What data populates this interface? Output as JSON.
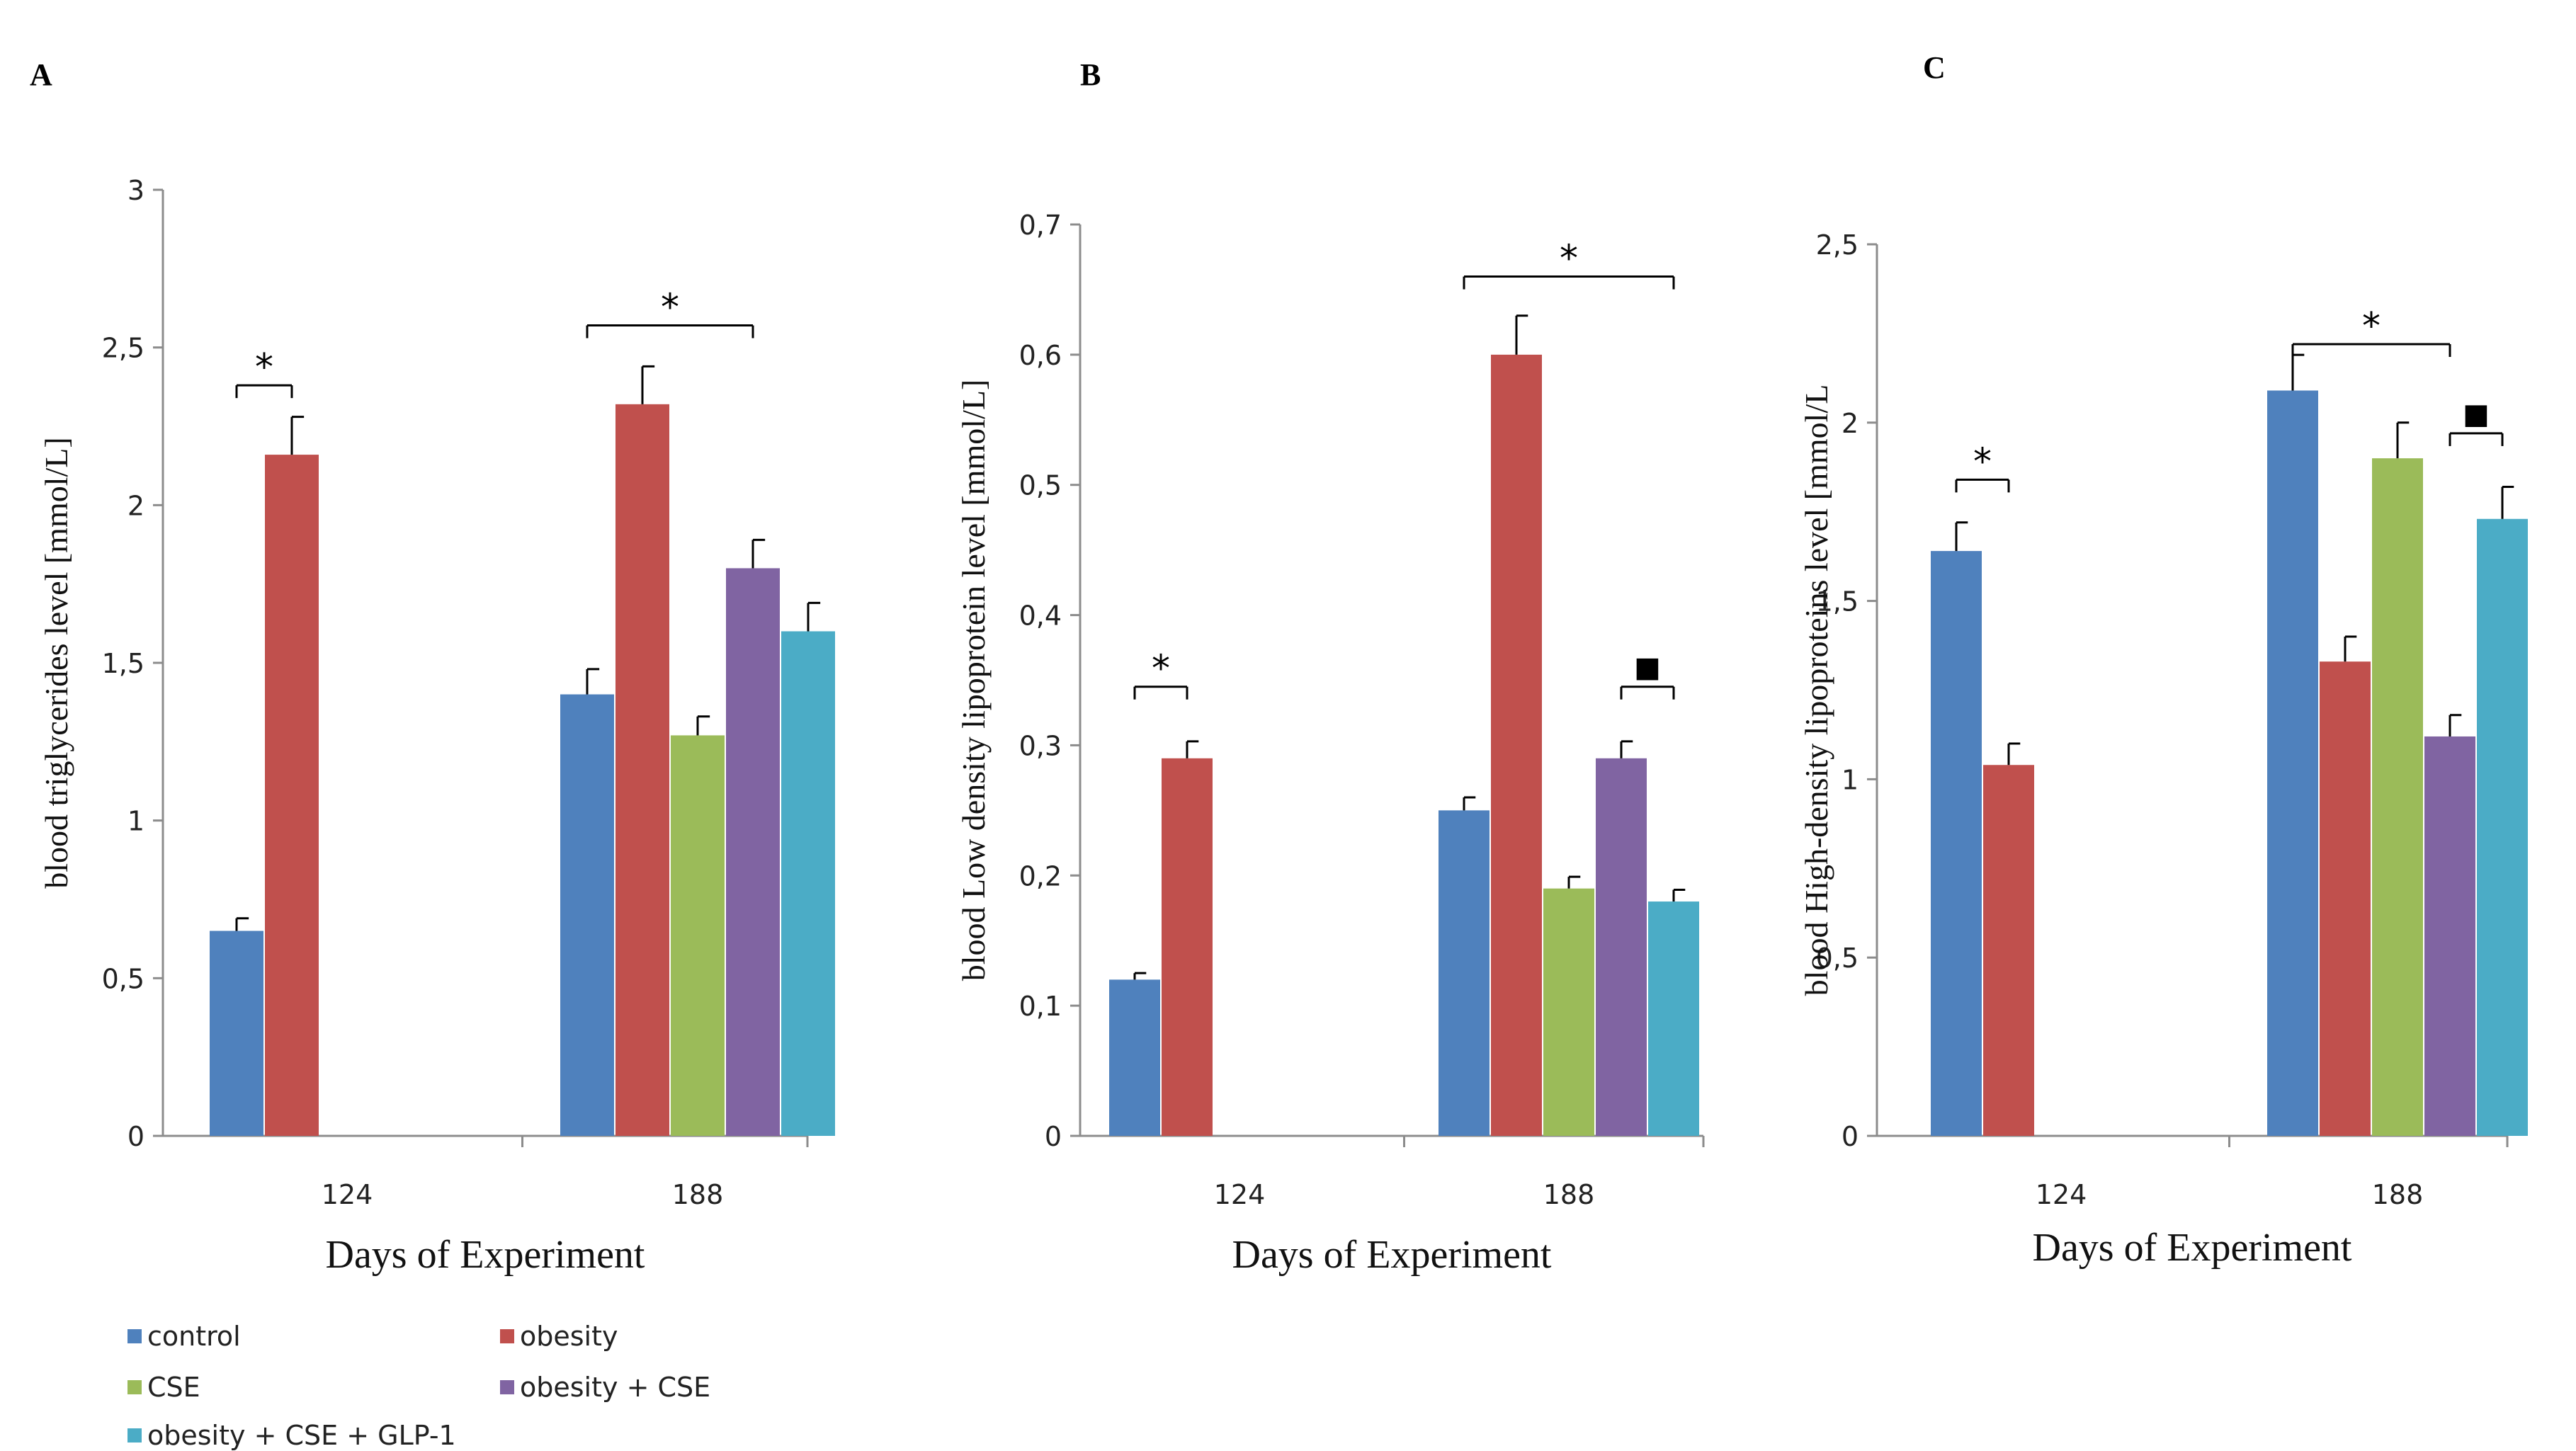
{
  "colors": {
    "control": "#4f81bd",
    "obesity": "#c0504d",
    "cse": "#9bbb59",
    "obesity_cse": "#8064a2",
    "obesity_cse_glp1": "#4bacc6"
  },
  "legend": {
    "items": [
      {
        "label": "control",
        "color": "#4f81bd"
      },
      {
        "label": "obesity",
        "color": "#c0504d"
      },
      {
        "label": "CSE",
        "color": "#9bbb59"
      },
      {
        "label": "obesity + CSE",
        "color": "#8064a2"
      },
      {
        "label": "obesity + CSE + GLP-1",
        "color": "#4bacc6"
      }
    ]
  },
  "chart_data": [
    {
      "panel": "A",
      "type": "bar",
      "title": "",
      "xlabel": "Days of Experiment",
      "ylabel": "blood triglycerides  level  [mmol/L]",
      "categories": [
        "124",
        "188"
      ],
      "ylim": [
        0,
        3
      ],
      "yticks": [
        "0",
        "0,5",
        "1",
        "1,5",
        "2",
        "2,5",
        "3"
      ],
      "ytick_values": [
        0,
        0.5,
        1,
        1.5,
        2,
        2.5,
        3
      ],
      "series": [
        {
          "name": "control",
          "values": [
            0.65,
            1.4
          ],
          "errors": [
            0.04,
            0.08
          ]
        },
        {
          "name": "obesity",
          "values": [
            2.16,
            2.32
          ],
          "errors": [
            0.12,
            0.12
          ]
        },
        {
          "name": "CSE",
          "values": [
            null,
            1.27
          ],
          "errors": [
            null,
            0.06
          ]
        },
        {
          "name": "obesity + CSE",
          "values": [
            null,
            1.8
          ],
          "errors": [
            null,
            0.09
          ]
        },
        {
          "name": "obesity + CSE + GLP-1",
          "values": [
            null,
            1.6
          ],
          "errors": [
            null,
            0.09
          ]
        }
      ],
      "annotations": [
        {
          "text": "*",
          "category": 0,
          "from_series": 0,
          "to_series": 1,
          "y": 2.38
        },
        {
          "text": "*",
          "category": 1,
          "from_series": 0,
          "to_series": 3,
          "y": 2.57
        }
      ]
    },
    {
      "panel": "B",
      "type": "bar",
      "title": "",
      "xlabel": "Days of Experiment",
      "ylabel": "blood  Low  density  lipoprotein  level  [mmol/L]",
      "categories": [
        "124",
        "188"
      ],
      "ylim": [
        0,
        0.7
      ],
      "yticks": [
        "0",
        "0,1",
        "0,2",
        "0,3",
        "0,4",
        "0,5",
        "0,6",
        "0,7"
      ],
      "ytick_values": [
        0,
        0.1,
        0.2,
        0.3,
        0.4,
        0.5,
        0.6,
        0.7
      ],
      "series": [
        {
          "name": "control",
          "values": [
            0.12,
            0.25
          ],
          "errors": [
            0.005,
            0.01
          ]
        },
        {
          "name": "obesity",
          "values": [
            0.29,
            0.6
          ],
          "errors": [
            0.013,
            0.03
          ]
        },
        {
          "name": "CSE",
          "values": [
            null,
            0.19
          ],
          "errors": [
            null,
            0.009
          ]
        },
        {
          "name": "obesity + CSE",
          "values": [
            null,
            0.29
          ],
          "errors": [
            null,
            0.013
          ]
        },
        {
          "name": "obesity + CSE + GLP-1",
          "values": [
            null,
            0.18
          ],
          "errors": [
            null,
            0.009
          ]
        }
      ],
      "annotations": [
        {
          "text": "*",
          "category": 0,
          "from_series": 0,
          "to_series": 1,
          "y": 0.345
        },
        {
          "text": "*",
          "category": 1,
          "from_series": 0,
          "to_series": 4,
          "y": 0.66
        },
        {
          "text": "■",
          "category": 1,
          "from_series": 3,
          "to_series": 4,
          "y": 0.345
        }
      ]
    },
    {
      "panel": "C",
      "type": "bar",
      "title": "",
      "xlabel": "Days of Experiment",
      "ylabel": "blood High-density lipoproteins level [mmol/L",
      "categories": [
        "124",
        "188"
      ],
      "ylim": [
        0,
        2.5
      ],
      "yticks": [
        "0",
        "0,5",
        "1",
        "1,5",
        "2",
        "2,5"
      ],
      "ytick_values": [
        0,
        0.5,
        1,
        1.5,
        2,
        2.5
      ],
      "series": [
        {
          "name": "control",
          "values": [
            1.64,
            2.09
          ],
          "errors": [
            0.08,
            0.1
          ]
        },
        {
          "name": "obesity",
          "values": [
            1.04,
            1.33
          ],
          "errors": [
            0.06,
            0.07
          ]
        },
        {
          "name": "CSE",
          "values": [
            null,
            1.9
          ],
          "errors": [
            null,
            0.1
          ]
        },
        {
          "name": "obesity + CSE",
          "values": [
            null,
            1.12
          ],
          "errors": [
            null,
            0.06
          ]
        },
        {
          "name": "obesity + CSE + GLP-1",
          "values": [
            null,
            1.73
          ],
          "errors": [
            null,
            0.09
          ]
        }
      ],
      "annotations": [
        {
          "text": "*",
          "category": 0,
          "from_series": 0,
          "to_series": 1,
          "y": 1.84
        },
        {
          "text": "*",
          "category": 1,
          "from_series": 0,
          "to_series": 3,
          "y": 2.22
        },
        {
          "text": "■",
          "category": 1,
          "from_series": 3,
          "to_series": 4,
          "y": 1.97
        }
      ]
    }
  ]
}
